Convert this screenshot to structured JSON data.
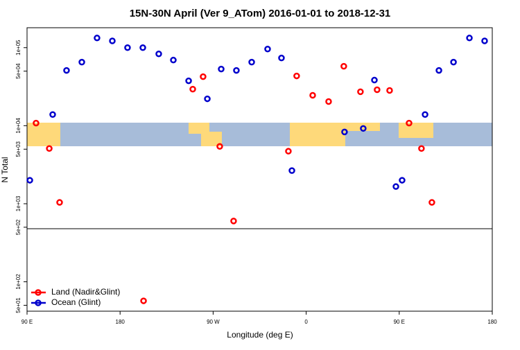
{
  "chart_data": {
    "type": "scatter",
    "title": "15N-30N April (Ver 9_ATom)   2016-01-01 to 2018-12-31",
    "x_label": "Longitude (deg E)",
    "y_label": "N Total",
    "yscale": "log",
    "legend": "bottom-left",
    "xlim": [
      90,
      540
    ],
    "ylim": [
      42,
      180000
    ],
    "xticks": [
      {
        "value": 90,
        "label": "90 E"
      },
      180,
      {
        "value": 270,
        "label": "90 W"
      },
      {
        "value": 360,
        "label": "0"
      },
      {
        "value": 450,
        "label": "90 E"
      },
      {
        "value": 540,
        "label": "180"
      }
    ],
    "yticks": [
      {
        "value": 50,
        "label": "5e+01"
      },
      {
        "value": 100,
        "label": "1e+02"
      },
      {
        "value": 500,
        "label": "5e+02"
      },
      {
        "value": 1000,
        "label": "1e+03"
      },
      {
        "value": 5000,
        "label": "5e+03"
      },
      {
        "value": 10000,
        "label": "1e+04"
      },
      {
        "value": 50000,
        "label": "5e+04"
      },
      {
        "value": 100000,
        "label": "1e+05"
      }
    ],
    "series": [
      {
        "name": "Land (Nadir&Glint)",
        "color": "#ff0000",
        "x": [
          98.7,
          111.5,
          121.5,
          202.7,
          250.3,
          260.3,
          276.4,
          289.8,
          342.8,
          350.8,
          366.3,
          381.7,
          396.4,
          412.5,
          428.6,
          440.7,
          459.5,
          471.5,
          481.6
        ],
        "values": [
          10800,
          5100,
          1040,
          57,
          29400,
          42500,
          5430,
          601,
          4710,
          43400,
          24500,
          20400,
          57700,
          27200,
          28900,
          28300,
          10800,
          5100,
          1040
        ]
      },
      {
        "name": "Ocean (Glint)",
        "color": "#0000cc",
        "x": [
          92.7,
          114.8,
          128.2,
          143.0,
          157.7,
          172.5,
          187.2,
          202.0,
          217.4,
          231.5,
          246.3,
          264.4,
          277.8,
          292.5,
          307.3,
          322.7,
          336.1,
          346.2,
          397.1,
          415.2,
          426.0,
          446.8,
          452.8,
          475.0,
          488.4,
          502.5,
          517.9,
          532.6
        ],
        "values": [
          2000,
          13900,
          51100,
          65200,
          133000,
          122000,
          100000,
          100000,
          83200,
          69300,
          37600,
          22100,
          53200,
          51100,
          65200,
          96000,
          73700,
          2660,
          8320,
          9220,
          38400,
          1660,
          2000,
          13900,
          51100,
          65200,
          133000,
          122000
        ]
      }
    ]
  }
}
